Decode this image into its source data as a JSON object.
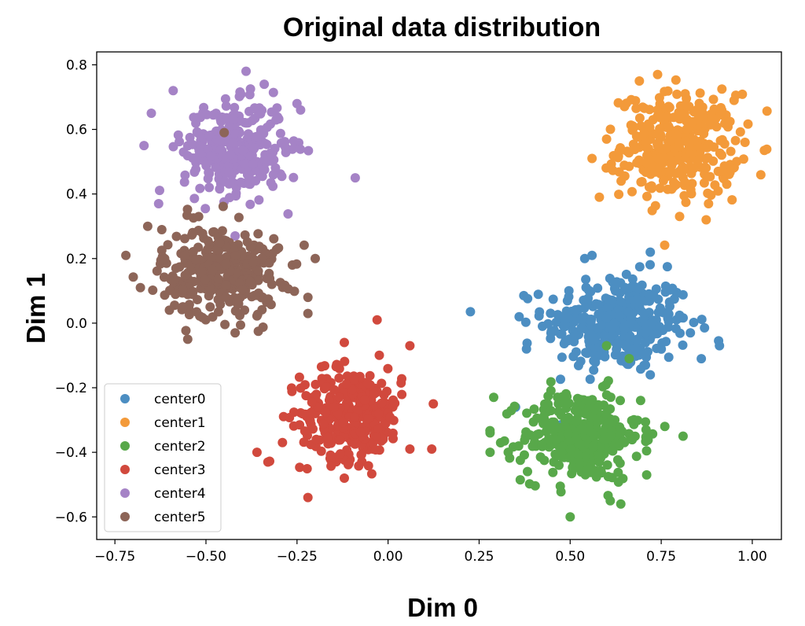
{
  "chart_data": {
    "type": "scatter",
    "title": "Original data distribution",
    "xlabel": "Dim 0",
    "ylabel": "Dim 1",
    "xlim": [
      -0.8,
      1.08
    ],
    "ylim": [
      -0.67,
      0.84
    ],
    "xticks": [
      -0.75,
      -0.5,
      -0.25,
      0.0,
      0.25,
      0.5,
      0.75,
      1.0
    ],
    "xtick_labels": [
      "−0.75",
      "−0.50",
      "−0.25",
      "0.00",
      "0.25",
      "0.50",
      "0.75",
      "1.00"
    ],
    "yticks": [
      -0.6,
      -0.4,
      -0.2,
      0.0,
      0.2,
      0.4,
      0.6,
      0.8
    ],
    "ytick_labels": [
      "−0.6",
      "−0.4",
      "−0.2",
      "0.0",
      "0.2",
      "0.4",
      "0.6",
      "0.8"
    ],
    "grid": false,
    "legend_position": "lower-left",
    "series": [
      {
        "name": "center0",
        "color": "#4c8ec2",
        "center": [
          0.63,
          0.0
        ],
        "spread": [
          0.1,
          0.075
        ],
        "points_per_cluster": 330,
        "points": [
          [
            0.91,
            -0.07
          ],
          [
            0.36,
            0.02
          ],
          [
            0.72,
            0.22
          ],
          [
            0.56,
            0.21
          ],
          [
            0.54,
            0.2
          ],
          [
            0.35,
            -0.26
          ],
          [
            0.86,
            -0.11
          ],
          [
            0.38,
            -0.08
          ],
          [
            0.83,
            -0.03
          ],
          [
            0.72,
            -0.16
          ]
        ]
      },
      {
        "name": "center1",
        "color": "#f39a3a",
        "center": [
          0.8,
          0.55
        ],
        "spread": [
          0.08,
          0.08
        ],
        "points_per_cluster": 330,
        "points": [
          [
            0.56,
            0.51
          ],
          [
            0.98,
            0.56
          ],
          [
            0.69,
            0.75
          ],
          [
            0.74,
            0.77
          ],
          [
            0.58,
            0.39
          ],
          [
            0.93,
            0.43
          ],
          [
            0.64,
            0.44
          ],
          [
            0.88,
            0.37
          ],
          [
            0.95,
            0.69
          ],
          [
            0.6,
            0.57
          ]
        ]
      },
      {
        "name": "center2",
        "color": "#58a84a",
        "center": [
          0.53,
          -0.35
        ],
        "spread": [
          0.08,
          0.07
        ],
        "points_per_cluster": 330,
        "points": [
          [
            0.28,
            -0.4
          ],
          [
            0.28,
            -0.34
          ],
          [
            0.5,
            -0.6
          ],
          [
            0.81,
            -0.35
          ],
          [
            0.71,
            -0.47
          ],
          [
            0.61,
            -0.55
          ],
          [
            0.33,
            -0.4
          ],
          [
            0.29,
            -0.23
          ],
          [
            0.76,
            -0.32
          ],
          [
            0.6,
            -0.07
          ]
        ]
      },
      {
        "name": "center3",
        "color": "#d1493d",
        "center": [
          -0.1,
          -0.28
        ],
        "spread": [
          0.07,
          0.07
        ],
        "points_per_cluster": 330,
        "points": [
          [
            -0.22,
            -0.54
          ],
          [
            0.12,
            -0.39
          ],
          [
            -0.03,
            0.01
          ],
          [
            -0.36,
            -0.4
          ],
          [
            -0.33,
            -0.43
          ],
          [
            0.06,
            -0.39
          ],
          [
            0.06,
            -0.07
          ],
          [
            -0.12,
            -0.48
          ],
          [
            -0.12,
            -0.06
          ],
          [
            -0.29,
            -0.37
          ]
        ]
      },
      {
        "name": "center4",
        "color": "#a583c6",
        "center": [
          -0.42,
          0.54
        ],
        "spread": [
          0.07,
          0.07
        ],
        "points_per_cluster": 330,
        "points": [
          [
            -0.39,
            0.78
          ],
          [
            -0.09,
            0.45
          ],
          [
            -0.67,
            0.55
          ],
          [
            -0.59,
            0.72
          ],
          [
            -0.24,
            0.66
          ],
          [
            -0.63,
            0.37
          ],
          [
            -0.34,
            0.74
          ],
          [
            -0.25,
            0.68
          ],
          [
            -0.65,
            0.65
          ],
          [
            -0.42,
            0.27
          ]
        ]
      },
      {
        "name": "center5",
        "color": "#8d6558",
        "center": [
          -0.46,
          0.16
        ],
        "spread": [
          0.08,
          0.07
        ],
        "points_per_cluster": 330,
        "points": [
          [
            -0.72,
            0.21
          ],
          [
            -0.66,
            0.3
          ],
          [
            -0.55,
            -0.05
          ],
          [
            -0.2,
            0.2
          ],
          [
            -0.68,
            0.11
          ],
          [
            -0.22,
            0.08
          ],
          [
            -0.42,
            -0.03
          ],
          [
            -0.52,
            0.33
          ],
          [
            -0.22,
            0.03
          ],
          [
            -0.45,
            0.59
          ]
        ]
      }
    ]
  }
}
